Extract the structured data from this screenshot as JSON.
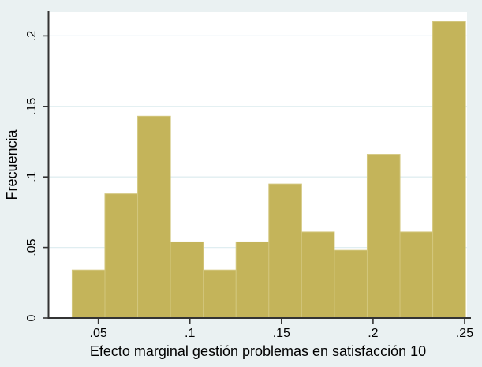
{
  "window": {
    "background_color": "#eaf1f2"
  },
  "chart_data": {
    "type": "bar",
    "subtype": "histogram",
    "title": "",
    "xlabel": "Efecto marginal gestión problemas en satisfacción 10",
    "ylabel": "Frecuencia",
    "bins": {
      "start": 0.0357,
      "width": 0.0179,
      "count": 12
    },
    "values": [
      0.034,
      0.088,
      0.143,
      0.054,
      0.034,
      0.054,
      0.095,
      0.061,
      0.048,
      0.116,
      0.061,
      0.21
    ],
    "x_ticks": [
      {
        "value": 0.05,
        "label": ".05"
      },
      {
        "value": 0.1,
        "label": ".1"
      },
      {
        "value": 0.15,
        "label": ".15"
      },
      {
        "value": 0.2,
        "label": ".2"
      },
      {
        "value": 0.25,
        "label": ".25"
      }
    ],
    "y_ticks": [
      {
        "value": 0.0,
        "label": "0"
      },
      {
        "value": 0.05,
        "label": ".05"
      },
      {
        "value": 0.1,
        "label": ".1"
      },
      {
        "value": 0.15,
        "label": ".15"
      },
      {
        "value": 0.2,
        "label": ".2"
      }
    ],
    "xlim": [
      0.0228,
      0.2513
    ],
    "ylim": [
      0,
      0.217
    ],
    "grid": "horizontal-only",
    "legend": "none",
    "colors": {
      "background": "#eaf1f2",
      "plot_background": "#ffffff",
      "gridline": "#e0eef1",
      "axis_line": "#333333",
      "bar_fill": "#c4b45a",
      "bar_stroke": "#d2c67c",
      "text": "#000000"
    }
  }
}
